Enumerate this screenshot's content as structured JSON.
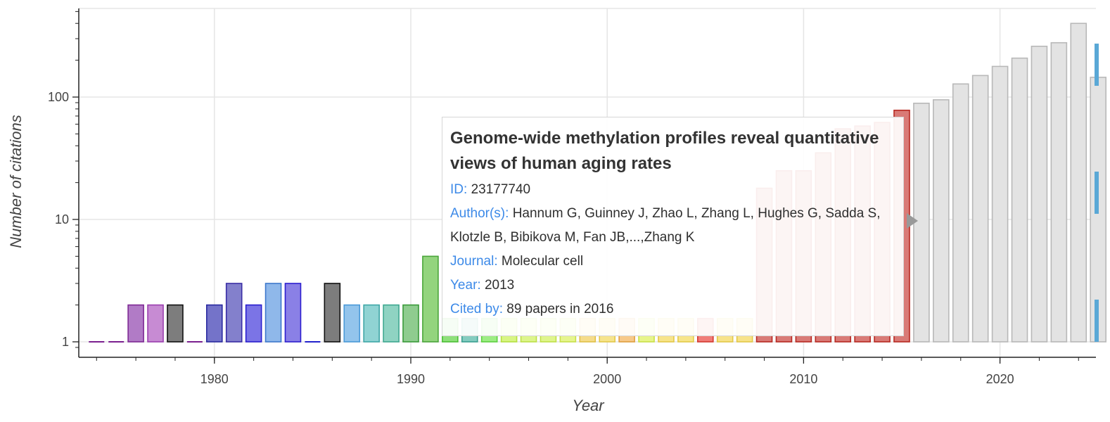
{
  "chart_data": {
    "type": "bar",
    "yscale": "log",
    "title": "",
    "xlabel": "Year",
    "ylabel": "Number of citations",
    "xlim": [
      1973,
      2025
    ],
    "ylim": [
      0.8,
      600
    ],
    "x_ticks": [
      1980,
      1990,
      2000,
      2010,
      2020
    ],
    "y_ticks": [
      {
        "value": 1,
        "label": "1"
      },
      {
        "value": 10,
        "label": "10"
      },
      {
        "value": 100,
        "label": "100"
      }
    ],
    "grid": true,
    "bars": [
      {
        "year": 1974,
        "value": 1,
        "fill": "#7a1f8f",
        "stroke": "#7a1f8f"
      },
      {
        "year": 1975,
        "value": 1,
        "fill": "#7a1f8f",
        "stroke": "#7a1f8f"
      },
      {
        "year": 1976,
        "value": 2,
        "fill": "#b17bc6",
        "stroke": "#7e2a95"
      },
      {
        "year": 1977,
        "value": 2,
        "fill": "#c78bd3",
        "stroke": "#9b3fb0"
      },
      {
        "year": 1978,
        "value": 2,
        "fill": "#7d7d7d",
        "stroke": "#111111"
      },
      {
        "year": 1979,
        "value": 1,
        "fill": "#7a1f8f",
        "stroke": "#7a1f8f"
      },
      {
        "year": 1980,
        "value": 2,
        "fill": "#7473c9",
        "stroke": "#2a2aa0"
      },
      {
        "year": 1981,
        "value": 3,
        "fill": "#8380cc",
        "stroke": "#3a2ea5"
      },
      {
        "year": 1982,
        "value": 2,
        "fill": "#7b74e6",
        "stroke": "#2a1fcf"
      },
      {
        "year": 1983,
        "value": 3,
        "fill": "#8fb8ea",
        "stroke": "#3d78cc"
      },
      {
        "year": 1984,
        "value": 3,
        "fill": "#8a80e6",
        "stroke": "#2d1fcf"
      },
      {
        "year": 1985,
        "value": 1,
        "fill": "#2222cc",
        "stroke": "#2222cc"
      },
      {
        "year": 1986,
        "value": 3,
        "fill": "#7d7d7d",
        "stroke": "#111111"
      },
      {
        "year": 1987,
        "value": 2,
        "fill": "#93c4ec",
        "stroke": "#4a9ad8"
      },
      {
        "year": 1988,
        "value": 2,
        "fill": "#90d3d3",
        "stroke": "#3fa7a7"
      },
      {
        "year": 1989,
        "value": 2,
        "fill": "#8fd3c2",
        "stroke": "#3fa890"
      },
      {
        "year": 1990,
        "value": 2,
        "fill": "#8fcc8f",
        "stroke": "#3a9a3a"
      },
      {
        "year": 1991,
        "value": 5,
        "fill": "#93d47e",
        "stroke": "#4aa53a"
      },
      {
        "year": 1992,
        "value": 1.55,
        "fill": "#8ee07a",
        "stroke": "#4bbf35"
      },
      {
        "year": 1993,
        "value": 1.55,
        "fill": "#84ccc0",
        "stroke": "#3aa090"
      },
      {
        "year": 1994,
        "value": 1.55,
        "fill": "#9ded84",
        "stroke": "#5cd040"
      },
      {
        "year": 1995,
        "value": 1.55,
        "fill": "#d8f584",
        "stroke": "#b5e040"
      },
      {
        "year": 1996,
        "value": 1.55,
        "fill": "#ddf58c",
        "stroke": "#bde048"
      },
      {
        "year": 1997,
        "value": 1.55,
        "fill": "#dff58c",
        "stroke": "#c0e048"
      },
      {
        "year": 1998,
        "value": 1.55,
        "fill": "#e6f58e",
        "stroke": "#c8e04a"
      },
      {
        "year": 1999,
        "value": 1.55,
        "fill": "#f5dc8a",
        "stroke": "#e0c048"
      },
      {
        "year": 2000,
        "value": 1.55,
        "fill": "#f6e48c",
        "stroke": "#e3c84a"
      },
      {
        "year": 2001,
        "value": 1.55,
        "fill": "#f7c98a",
        "stroke": "#e0a040"
      },
      {
        "year": 2002,
        "value": 1.55,
        "fill": "#e7f58a",
        "stroke": "#cae048"
      },
      {
        "year": 2003,
        "value": 1.55,
        "fill": "#f7e48a",
        "stroke": "#e3c848"
      },
      {
        "year": 2004,
        "value": 1.55,
        "fill": "#f7e58a",
        "stroke": "#e3ca48"
      },
      {
        "year": 2005,
        "value": 1.55,
        "fill": "#f07c78",
        "stroke": "#d53a30"
      },
      {
        "year": 2006,
        "value": 1.55,
        "fill": "#f7e38a",
        "stroke": "#e3c848"
      },
      {
        "year": 2007,
        "value": 1.55,
        "fill": "#f7e38a",
        "stroke": "#e3c848"
      },
      {
        "year": 2008,
        "value": 18,
        "fill": "#d97a76",
        "stroke": "#b82a22"
      },
      {
        "year": 2009,
        "value": 25,
        "fill": "#d97a76",
        "stroke": "#b82a22"
      },
      {
        "year": 2010,
        "value": 25,
        "fill": "#d97a76",
        "stroke": "#b82a22"
      },
      {
        "year": 2011,
        "value": 35,
        "fill": "#d97a76",
        "stroke": "#b82a22"
      },
      {
        "year": 2012,
        "value": 55,
        "fill": "#d97a76",
        "stroke": "#b82a22"
      },
      {
        "year": 2013,
        "value": 58,
        "fill": "#d97a76",
        "stroke": "#b82a22"
      },
      {
        "year": 2014,
        "value": 62,
        "fill": "#d97a76",
        "stroke": "#b82a22"
      },
      {
        "year": 2015,
        "value": 78,
        "fill": "#d97a76",
        "stroke": "#b82a22"
      },
      {
        "year": 2016,
        "value": 89,
        "fill": "#e3e3e3",
        "stroke": "#b8b8b8"
      },
      {
        "year": 2017,
        "value": 95,
        "fill": "#e3e3e3",
        "stroke": "#b8b8b8"
      },
      {
        "year": 2018,
        "value": 128,
        "fill": "#e3e3e3",
        "stroke": "#b8b8b8"
      },
      {
        "year": 2019,
        "value": 150,
        "fill": "#e3e3e3",
        "stroke": "#b8b8b8"
      },
      {
        "year": 2020,
        "value": 178,
        "fill": "#e3e3e3",
        "stroke": "#b8b8b8"
      },
      {
        "year": 2021,
        "value": 208,
        "fill": "#e3e3e3",
        "stroke": "#b8b8b8"
      },
      {
        "year": 2022,
        "value": 260,
        "fill": "#e3e3e3",
        "stroke": "#b8b8b8"
      },
      {
        "year": 2023,
        "value": 278,
        "fill": "#e3e3e3",
        "stroke": "#b8b8b8"
      },
      {
        "year": 2024,
        "value": 400,
        "fill": "#e3e3e3",
        "stroke": "#b8b8b8"
      },
      {
        "year": 2025,
        "value": 145,
        "fill": "#e3e3e3",
        "stroke": "#b8b8b8"
      }
    ]
  },
  "tooltip": {
    "title": "Genome-wide methylation profiles reveal quantitative views of human aging rates",
    "id_label": "ID:",
    "id_value": "23177740",
    "authors_label": "Author(s):",
    "authors_value": "Hannum G, Guinney J, Zhao L, Zhang L, Hughes G, Sadda S, Klotzle B, Bibikova M, Fan JB,...,Zhang K",
    "journal_label": "Journal:",
    "journal_value": "Molecular cell",
    "year_label": "Year:",
    "year_value": "2013",
    "cited_label": "Cited by:",
    "cited_value": "89 papers in 2016"
  },
  "colors": {
    "grid": "#e5e5e5",
    "axis": "#222222",
    "tooltip_key": "#3d8ae8",
    "edge_tab": "#5aa8d6"
  }
}
